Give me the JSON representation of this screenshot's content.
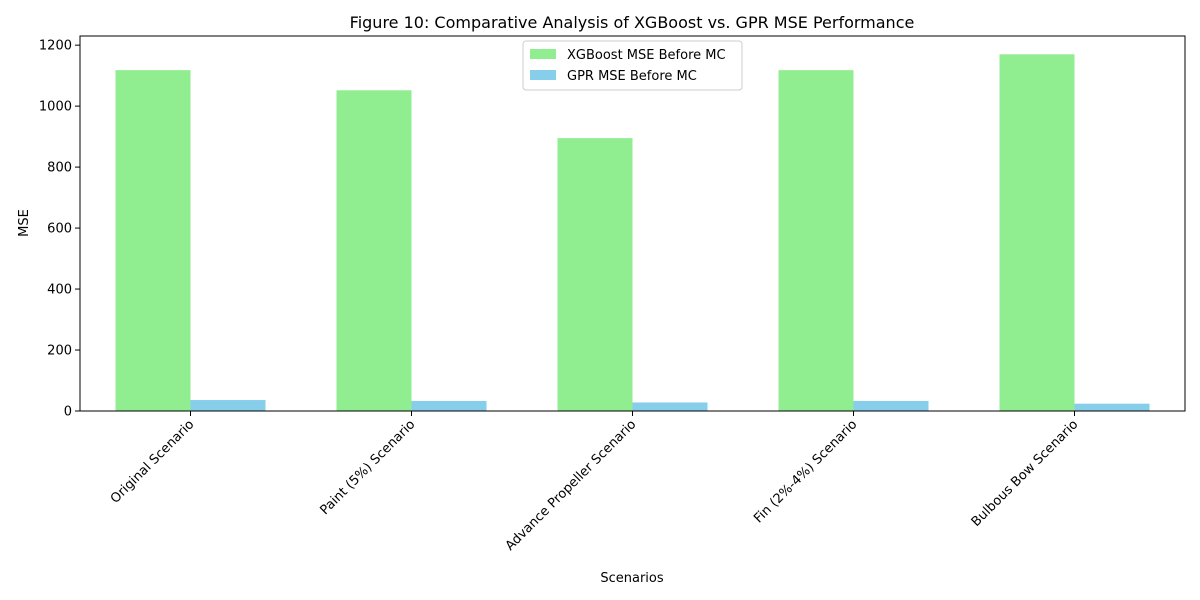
{
  "chart_data": {
    "type": "bar",
    "title": "Figure 10: Comparative Analysis of XGBoost vs. GPR MSE Performance",
    "xlabel": "Scenarios",
    "ylabel": "MSE",
    "categories": [
      "Original Scenario",
      "Paint (5%) Scenario",
      "Advance Propeller Scenario",
      "Fin (2%-4%) Scenario",
      "Bulbous Bow Scenario"
    ],
    "series": [
      {
        "name": "XGBoost MSE Before MC",
        "color": "#90ee90",
        "values": [
          1118,
          1052,
          895,
          1118,
          1170
        ]
      },
      {
        "name": "GPR MSE Before MC",
        "color": "#87ceeb",
        "values": [
          36,
          33,
          28,
          33,
          24
        ]
      }
    ],
    "ylim": [
      0,
      1230
    ],
    "yticks": [
      0,
      200,
      400,
      600,
      800,
      1000,
      1200
    ],
    "grid": false,
    "legend_position": "top-center"
  }
}
